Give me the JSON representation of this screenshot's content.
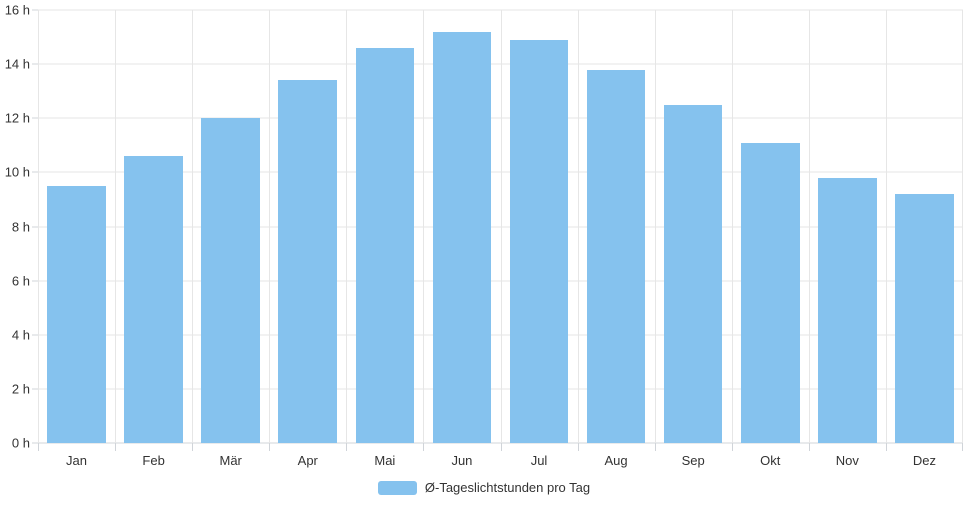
{
  "chart_data": {
    "type": "bar",
    "title": "",
    "categories": [
      "Jan",
      "Feb",
      "Mär",
      "Apr",
      "Mai",
      "Jun",
      "Jul",
      "Aug",
      "Sep",
      "Okt",
      "Nov",
      "Dez"
    ],
    "series": [
      {
        "name": "Ø-Tageslichtstunden pro Tag",
        "values": [
          9.5,
          10.6,
          12.0,
          13.4,
          14.6,
          15.2,
          14.9,
          13.8,
          12.5,
          11.1,
          9.8,
          9.2
        ]
      }
    ],
    "xlabel": "",
    "ylabel": "",
    "ylim": [
      0,
      16
    ],
    "y_tick_values": [
      0,
      2,
      4,
      6,
      8,
      10,
      12,
      14,
      16
    ],
    "y_tick_labels": [
      "0 h",
      "2 h",
      "4 h",
      "6 h",
      "8 h",
      "10 h",
      "12 h",
      "14 h",
      "16 h"
    ],
    "grid": true,
    "legend_position": "bottom-center",
    "colors": {
      "bar": "#85c2ee",
      "grid": "#e6e6e6",
      "axis": "#d0d4d9",
      "text": "#333333",
      "background": "#ffffff"
    }
  },
  "legend": {
    "items": [
      {
        "label": "Ø-Tageslichtstunden pro Tag",
        "swatch_color": "#85c2ee"
      }
    ]
  }
}
